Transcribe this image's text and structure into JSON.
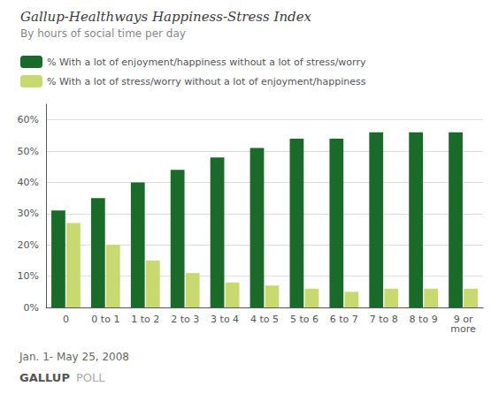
{
  "chart_data": {
    "type": "bar",
    "title": "Gallup-Healthways Happiness-Stress Index",
    "subtitle": "By hours of social time per day",
    "categories": [
      "0",
      "0 to 1",
      "1 to 2",
      "2 to 3",
      "3 to 4",
      "4 to 5",
      "5 to 6",
      "6 to 7",
      "7 to 8",
      "8 to 9",
      "9 or\nmore"
    ],
    "series": [
      {
        "name": "% With a lot of enjoyment/happiness without a lot of stress/worry",
        "color": "#1a6b2a",
        "values": [
          31,
          35,
          40,
          44,
          48,
          51,
          54,
          54,
          56,
          56,
          56
        ]
      },
      {
        "name": "% With a lot of stress/worry without a lot of enjoyment/happiness",
        "color": "#c8d96f",
        "values": [
          27,
          20,
          15,
          11,
          8,
          7,
          6,
          5,
          6,
          6,
          6
        ]
      }
    ],
    "ylim": [
      0,
      65
    ],
    "yticks": [
      {
        "value": 0,
        "label": "0%"
      },
      {
        "value": 10,
        "label": "10%"
      },
      {
        "value": 20,
        "label": "20%"
      },
      {
        "value": 30,
        "label": "30%"
      },
      {
        "value": 40,
        "label": "40%"
      },
      {
        "value": 50,
        "label": "50%"
      },
      {
        "value": 60,
        "label": "60%"
      }
    ],
    "grid": true,
    "legend": "top",
    "annotations": [
      "Jan. 1- May 25, 2008",
      "GALLUP",
      "POLL"
    ]
  }
}
